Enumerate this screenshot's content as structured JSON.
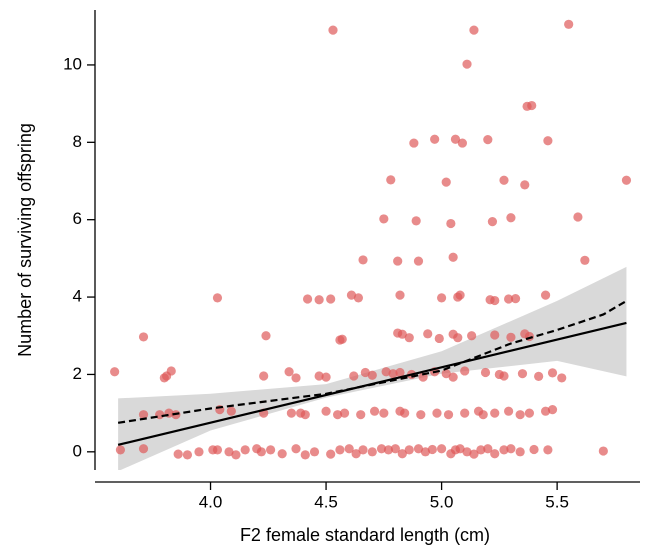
{
  "chart_data": {
    "type": "scatter",
    "x_label": "F2 female standard length (cm)",
    "y_label": "Number of surviving offspring",
    "xlim": [
      3.5,
      5.85
    ],
    "ylim": [
      -0.47,
      11.42
    ],
    "xticks": [
      {
        "value": 4.0,
        "label": "4.0"
      },
      4.5,
      {
        "value": 5.0,
        "label": "5.0"
      },
      5.5
    ],
    "yticks": [
      0,
      2,
      4,
      6,
      8,
      10
    ],
    "points": {
      "color": "#de5a5a",
      "x": [
        3.61,
        3.71,
        3.86,
        3.9,
        3.95,
        4.01,
        4.03,
        4.08,
        4.11,
        4.15,
        4.2,
        4.22,
        4.26,
        4.31,
        4.37,
        4.41,
        4.45,
        4.52,
        4.56,
        4.6,
        4.63,
        4.66,
        4.7,
        4.74,
        4.77,
        4.8,
        4.83,
        4.86,
        4.9,
        4.93,
        4.96,
        5.0,
        5.04,
        5.06,
        5.08,
        5.11,
        5.14,
        5.17,
        5.2,
        5.23,
        5.27,
        5.3,
        5.34,
        5.4,
        5.46,
        5.7,
        3.71,
        3.78,
        3.82,
        3.85,
        4.04,
        4.09,
        4.23,
        4.35,
        4.39,
        4.41,
        4.5,
        4.55,
        4.58,
        4.65,
        4.71,
        4.75,
        4.82,
        4.84,
        4.91,
        4.98,
        5.03,
        5.1,
        5.16,
        5.18,
        5.23,
        5.29,
        5.34,
        5.38,
        5.45,
        5.48,
        3.585,
        3.8,
        3.81,
        3.83,
        4.23,
        4.34,
        4.37,
        4.47,
        4.5,
        4.62,
        4.67,
        4.7,
        4.76,
        4.79,
        4.82,
        4.87,
        4.92,
        4.97,
        5.02,
        5.05,
        5.1,
        5.19,
        5.25,
        5.27,
        5.35,
        5.42,
        5.48,
        5.52,
        3.71,
        4.24,
        4.56,
        4.57,
        4.81,
        4.83,
        4.86,
        4.94,
        4.99,
        5.05,
        5.07,
        5.13,
        5.23,
        5.3,
        5.36,
        5.38,
        4.03,
        4.42,
        4.47,
        4.52,
        4.61,
        4.64,
        4.82,
        5.0,
        5.07,
        5.08,
        5.21,
        5.23,
        5.29,
        5.32,
        5.45,
        5.62,
        4.66,
        4.81,
        4.9,
        5.05,
        4.75,
        4.89,
        5.04,
        5.22,
        5.3,
        5.59,
        4.78,
        5.02,
        5.27,
        5.36,
        5.8,
        4.88,
        4.97,
        5.06,
        5.09,
        5.2,
        5.46,
        5.37,
        5.39,
        4.53,
        5.11,
        5.14,
        5.55
      ],
      "y": [
        0.05,
        0.08,
        -0.06,
        -0.08,
        0,
        0.05,
        0.05,
        0,
        -0.08,
        0.05,
        0.08,
        0,
        0.05,
        -0.05,
        0.08,
        -0.08,
        0,
        -0.06,
        0.05,
        0.08,
        -0.05,
        0.05,
        0,
        0.08,
        0.05,
        0.08,
        -0.05,
        0.05,
        0.08,
        0,
        0.06,
        0.08,
        -0.05,
        0.05,
        0.08,
        0,
        -0.06,
        0.05,
        0.08,
        -0.05,
        0.05,
        0.08,
        0,
        0.06,
        0.05,
        0.02,
        0.96,
        0.96,
        1.0,
        0.96,
        1.09,
        1.05,
        1.0,
        1.0,
        1.0,
        0.96,
        1.05,
        0.96,
        1.0,
        0.96,
        1.05,
        1.0,
        1.05,
        1.0,
        0.96,
        1.0,
        0.96,
        1.0,
        1.05,
        0.96,
        1.0,
        1.05,
        0.96,
        1.0,
        1.05,
        1.09,
        2.07,
        1.91,
        1.96,
        2.09,
        1.96,
        2.07,
        1.91,
        1.96,
        1.93,
        1.96,
        2.05,
        1.98,
        2.07,
        2.02,
        2.05,
        2.0,
        1.93,
        2.07,
        2.02,
        1.93,
        2.09,
        2.05,
        2.0,
        1.96,
        2.02,
        1.95,
        2.04,
        1.91,
        2.97,
        3.0,
        2.89,
        2.91,
        3.07,
        3.04,
        2.95,
        3.05,
        2.93,
        3.04,
        2.95,
        3.0,
        3.02,
        2.96,
        3.05,
        2.98,
        3.98,
        3.95,
        3.93,
        3.95,
        4.05,
        3.98,
        4.05,
        3.98,
        4.0,
        4.05,
        3.93,
        3.91,
        3.95,
        3.96,
        4.05,
        4.95,
        4.96,
        4.93,
        4.93,
        5.03,
        6.02,
        5.97,
        5.9,
        5.95,
        6.05,
        6.07,
        7.03,
        6.97,
        7.02,
        6.9,
        7.02,
        7.98,
        8.08,
        8.08,
        7.98,
        8.07,
        8.04,
        8.93,
        8.95,
        10.9,
        10.02,
        10.9,
        11.05
      ]
    },
    "band": {
      "color": "#d9d9d9",
      "x": [
        3.6,
        4.0,
        4.5,
        5.0,
        5.5,
        5.8
      ],
      "upper": [
        1.38,
        1.5,
        1.75,
        2.6,
        3.9,
        4.78
      ],
      "lower": [
        -0.5,
        0.55,
        1.4,
        2.02,
        2.35,
        1.95
      ]
    },
    "fit": {
      "color": "#000000",
      "x": [
        3.6,
        5.8
      ],
      "y": [
        0.18,
        3.33
      ]
    },
    "smooth": {
      "color": "#000000",
      "x": [
        3.6,
        4.0,
        4.5,
        5.0,
        5.3,
        5.5,
        5.7,
        5.8
      ],
      "y": [
        0.75,
        1.12,
        1.5,
        2.1,
        2.8,
        3.15,
        3.55,
        3.9
      ]
    }
  }
}
